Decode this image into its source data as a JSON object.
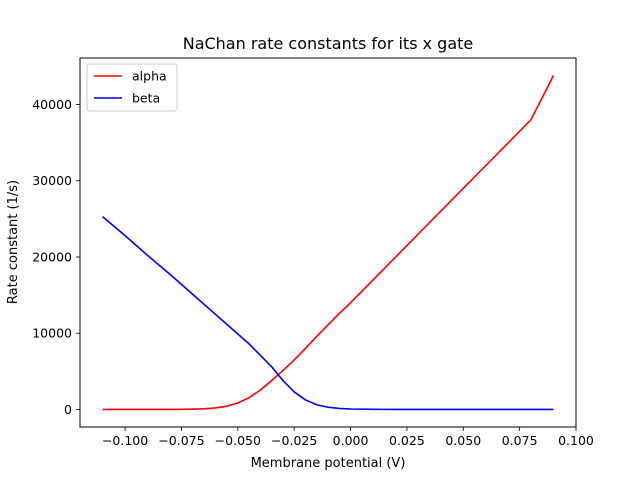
{
  "chart_data": {
    "type": "line",
    "title": "NaChan rate constants for its x gate",
    "xlabel": "Membrane potential (V)",
    "ylabel": "Rate constant (1/s)",
    "xlim": [
      -0.12,
      0.1
    ],
    "ylim": [
      -2300,
      46100
    ],
    "xticks": [
      -0.1,
      -0.075,
      -0.05,
      -0.025,
      0.0,
      0.025,
      0.05,
      0.075,
      0.1
    ],
    "xtick_labels": [
      "−0.100",
      "−0.075",
      "−0.050",
      "−0.025",
      "0.000",
      "0.025",
      "0.050",
      "0.075",
      "0.100"
    ],
    "yticks": [
      0,
      10000,
      20000,
      30000,
      40000
    ],
    "ytick_labels": [
      "0",
      "10000",
      "20000",
      "30000",
      "40000"
    ],
    "grid": false,
    "legend_position": "top-left",
    "series": [
      {
        "name": "alpha",
        "color": "#ff0000",
        "x": [
          -0.11,
          -0.1,
          -0.09,
          -0.08,
          -0.075,
          -0.07,
          -0.065,
          -0.06,
          -0.055,
          -0.05,
          -0.045,
          -0.04,
          -0.035,
          -0.03,
          -0.025,
          -0.02,
          -0.015,
          -0.01,
          -0.005,
          0.0,
          0.01,
          0.02,
          0.03,
          0.04,
          0.05,
          0.06,
          0.07,
          0.08,
          0.09
        ],
        "y": [
          0,
          1,
          3,
          10,
          20,
          40,
          90,
          200,
          430,
          850,
          1550,
          2550,
          3800,
          5100,
          6500,
          8000,
          9600,
          11100,
          12600,
          14000,
          17000,
          20000,
          23000,
          26000,
          29000,
          32000,
          35000,
          38000,
          43800
        ]
      },
      {
        "name": "beta",
        "color": "#0000ff",
        "x": [
          -0.11,
          -0.1,
          -0.09,
          -0.08,
          -0.07,
          -0.06,
          -0.05,
          -0.045,
          -0.04,
          -0.035,
          -0.03,
          -0.025,
          -0.02,
          -0.015,
          -0.01,
          -0.005,
          0.0,
          0.01,
          0.02,
          0.04,
          0.06,
          0.09
        ],
        "y": [
          25300,
          22800,
          20200,
          17700,
          15100,
          12500,
          9900,
          8600,
          7100,
          5600,
          3800,
          2300,
          1250,
          620,
          290,
          130,
          60,
          15,
          4,
          0,
          0,
          0
        ]
      }
    ]
  }
}
